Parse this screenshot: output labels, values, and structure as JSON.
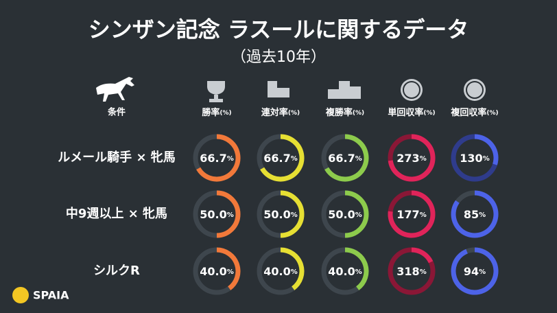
{
  "title": "シンザン記念 ラスールに関するデータ",
  "subtitle": "（過去10年）",
  "condition_header": "条件",
  "unit": "%",
  "columns": [
    {
      "name": "勝率",
      "unit": "(%)",
      "color": "#f2793a",
      "over_color": "#9c4a22"
    },
    {
      "name": "連対率",
      "unit": "(%)",
      "color": "#e6df33",
      "over_color": "#8f8a20"
    },
    {
      "name": "複勝率",
      "unit": "(%)",
      "color": "#8dcb4c",
      "over_color": "#567d2e"
    },
    {
      "name": "単回収率",
      "unit": "(%)",
      "color": "#e0245a",
      "over_color": "#8a1736"
    },
    {
      "name": "複回収率",
      "unit": "(%)",
      "color": "#4d63e8",
      "over_color": "#2f3c8c"
    }
  ],
  "rows": [
    {
      "label": "ルメール騎手 × 牝馬",
      "values": [
        66.7,
        66.7,
        66.7,
        273,
        130
      ],
      "value_labels": [
        "66.7",
        "66.7",
        "66.7",
        "273",
        "130"
      ]
    },
    {
      "label": "中9週以上 × 牝馬",
      "values": [
        50,
        50,
        50,
        177,
        85
      ],
      "value_labels": [
        "50.0",
        "50.0",
        "50.0",
        "177",
        "85"
      ]
    },
    {
      "label": "シルクR",
      "values": [
        40,
        40,
        40,
        318,
        94
      ],
      "value_labels": [
        "40.0",
        "40.0",
        "40.0",
        "318",
        "94"
      ]
    }
  ],
  "brand": "SPAIA"
}
